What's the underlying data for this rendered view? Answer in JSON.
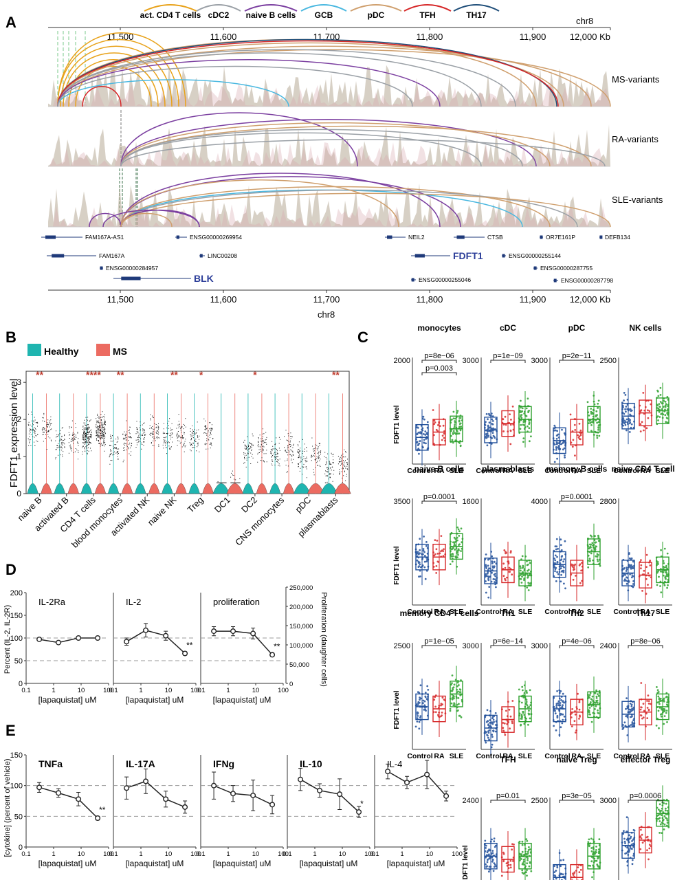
{
  "panelA": {
    "label": "A",
    "legend": [
      {
        "name": "act. CD4 T cells",
        "color": "#e8a21a"
      },
      {
        "name": "cDC2",
        "color": "#9aa0a6"
      },
      {
        "name": "naive B cells",
        "color": "#7b3fa0"
      },
      {
        "name": "GCB",
        "color": "#4ab8e0"
      },
      {
        "name": "pDC",
        "color": "#cf9f6d"
      },
      {
        "name": "TFH",
        "color": "#d62728"
      },
      {
        "name": "TH17",
        "color": "#1f4e79"
      }
    ],
    "chrom": "chr8",
    "ticks": [
      "11,500",
      "11,600",
      "11,700",
      "11,800",
      "11,900",
      "12,000 Kb"
    ],
    "tracks": [
      "MS-variants",
      "RA-variants",
      "SLE-variants"
    ],
    "genes": [
      "FAM167A-AS1",
      "ENSG00000269954",
      "NEIL2",
      "CTSB",
      "OR7E161P",
      "DEFB134",
      "FAM167A",
      "LINC00208",
      "FDFT1",
      "ENSG00000255144",
      "ENSG00000284957",
      "ENSG00000287755",
      "BLK",
      "ENSG00000255046",
      "ENSG00000287798"
    ]
  },
  "panelB": {
    "label": "B",
    "legend": [
      {
        "name": "Healthy",
        "color": "#1fb5b0"
      },
      {
        "name": "MS",
        "color": "#ec6b61"
      }
    ],
    "ylabel": "FDFT1 expression level",
    "yticks": [
      "0",
      "1",
      "2",
      "3"
    ],
    "categories": [
      "naive B",
      "activated B",
      "CD4 T cells",
      "blood monocytes",
      "activated NK",
      "naive NK",
      "Treg",
      "DC1",
      "DC2",
      "CNS monocytes",
      "pDC",
      "plasmablasts"
    ],
    "significance": [
      "**",
      "",
      "****",
      "**",
      "",
      "**",
      "*",
      "",
      "*",
      "",
      "",
      "**"
    ]
  },
  "panelC": {
    "label": "C",
    "ylabel": "FDFT1 level",
    "groups": [
      "Control",
      "RA",
      "SLE"
    ],
    "group_colors": [
      "#1f4e99",
      "#d62728",
      "#2ca02c"
    ],
    "panels": [
      {
        "title": "monocytes",
        "ymax": "2000",
        "p": [
          "p=8e−06",
          "p=0.003"
        ]
      },
      {
        "title": "cDC",
        "ymax": "3000",
        "p": [
          "p=1e−09"
        ]
      },
      {
        "title": "pDC",
        "ymax": "3000",
        "p": [
          "p=2e−11"
        ]
      },
      {
        "title": "NK cells",
        "ymax": "2500",
        "p": []
      },
      {
        "title": "naive B cells",
        "ymax": "3500",
        "p": [
          "p=0.0001"
        ]
      },
      {
        "title": "plasmablasts",
        "ymax": "1600",
        "p": []
      },
      {
        "title": "memory B cells",
        "ymax": "4000",
        "p": [
          "p=0.0001"
        ]
      },
      {
        "title": "naive CD4 T cells",
        "ymax": "2800",
        "p": []
      },
      {
        "title": "memory CD4 T cells",
        "ymax": "2500",
        "p": [
          "p=1e−05"
        ]
      },
      {
        "title": "Th1",
        "ymax": "3000",
        "p": [
          "p=6e−14"
        ]
      },
      {
        "title": "Th2",
        "ymax": "3000",
        "p": [
          "p=4e−06"
        ]
      },
      {
        "title": "Th17",
        "ymax": "2400",
        "p": [
          "p=8e−06"
        ]
      },
      {
        "title": "TFH",
        "ymax": "2400",
        "p": [
          "p=0.01"
        ]
      },
      {
        "title": "naive Treg",
        "ymax": "2500",
        "p": [
          "p=3e−05"
        ]
      },
      {
        "title": "effector Treg",
        "ymax": "3000",
        "p": [
          "p=0.0006"
        ]
      }
    ]
  },
  "panelD": {
    "label": "D",
    "ylabel": "Percent (IL-2, IL-2R)",
    "y2label": "Proliferation (daughter cells)",
    "xlabel": "[lapaquistat] uM",
    "yticks": [
      "0",
      "50",
      "100",
      "150",
      "200"
    ],
    "y2ticks": [
      "0",
      "50,000",
      "100,000",
      "150,000",
      "200,000",
      "250,000"
    ],
    "xticks": [
      "0.1",
      "1",
      "10",
      "100"
    ],
    "titles": [
      "IL-2Ra",
      "IL-2",
      "proliferation"
    ]
  },
  "panelE": {
    "label": "E",
    "ylabel": "[cytokine] (percent of vehicle)",
    "xlabel": "[lapaquistat] uM",
    "yticks": [
      "0",
      "50",
      "100",
      "150"
    ],
    "xticks": [
      "0.1",
      "1",
      "10",
      "100"
    ],
    "titles": [
      "TNFa",
      "IL-17A",
      "IFNg",
      "IL-10",
      "IL-4"
    ]
  },
  "chart_data": [
    {
      "type": "line",
      "title": "IL-2Ra",
      "x": [
        0.3,
        1.5,
        8,
        40
      ],
      "series": [
        {
          "values": [
            97,
            90,
            100,
            100
          ]
        }
      ],
      "xlabel": "[lapaquistat] uM",
      "ylabel": "Percent (IL-2, IL-2R)",
      "ylim": [
        0,
        200
      ],
      "xscale": "log"
    },
    {
      "type": "line",
      "title": "IL-2",
      "x": [
        0.3,
        1.5,
        8,
        40
      ],
      "series": [
        {
          "values": [
            92,
            117,
            105,
            66
          ]
        }
      ],
      "errors": [
        8,
        15,
        10,
        4
      ],
      "xlabel": "[lapaquistat] uM",
      "ylim": [
        0,
        200
      ],
      "xscale": "log",
      "annotation": "**"
    },
    {
      "type": "line",
      "title": "proliferation",
      "x": [
        0.3,
        1.5,
        8,
        40
      ],
      "series": [
        {
          "values": [
            115,
            115,
            110,
            63
          ]
        }
      ],
      "errors": [
        10,
        10,
        12,
        4
      ],
      "xlabel": "[lapaquistat] uM",
      "ylim": [
        0,
        200
      ],
      "xscale": "log",
      "annotation": "**"
    },
    {
      "type": "line",
      "title": "TNFa",
      "x": [
        0.3,
        1.5,
        8,
        40
      ],
      "series": [
        {
          "values": [
            97,
            88,
            78,
            47
          ]
        }
      ],
      "errors": [
        8,
        7,
        11,
        3
      ],
      "ylim": [
        0,
        150
      ],
      "xscale": "log",
      "annotation": "**"
    },
    {
      "type": "line",
      "title": "IL-17A",
      "x": [
        0.3,
        1.5,
        8,
        40
      ],
      "series": [
        {
          "values": [
            96,
            107,
            78,
            65
          ]
        }
      ],
      "errors": [
        18,
        20,
        13,
        10
      ],
      "ylim": [
        0,
        150
      ],
      "xscale": "log"
    },
    {
      "type": "line",
      "title": "IFNg",
      "x": [
        0.3,
        1.5,
        8,
        40
      ],
      "series": [
        {
          "values": [
            100,
            87,
            84,
            69
          ]
        }
      ],
      "errors": [
        22,
        13,
        25,
        15
      ],
      "ylim": [
        0,
        150
      ],
      "xscale": "log"
    },
    {
      "type": "line",
      "title": "IL-10",
      "x": [
        0.3,
        1.5,
        8,
        40
      ],
      "series": [
        {
          "values": [
            110,
            92,
            86,
            57
          ]
        }
      ],
      "errors": [
        18,
        11,
        25,
        9
      ],
      "ylim": [
        0,
        150
      ],
      "xscale": "log",
      "annotation": "*"
    },
    {
      "type": "line",
      "title": "IL-4",
      "x": [
        0.3,
        1.5,
        8,
        40
      ],
      "series": [
        {
          "values": [
            123,
            105,
            118,
            83
          ]
        }
      ],
      "errors": [
        12,
        10,
        23,
        8
      ],
      "ylim": [
        0,
        150
      ],
      "xscale": "log"
    }
  ]
}
